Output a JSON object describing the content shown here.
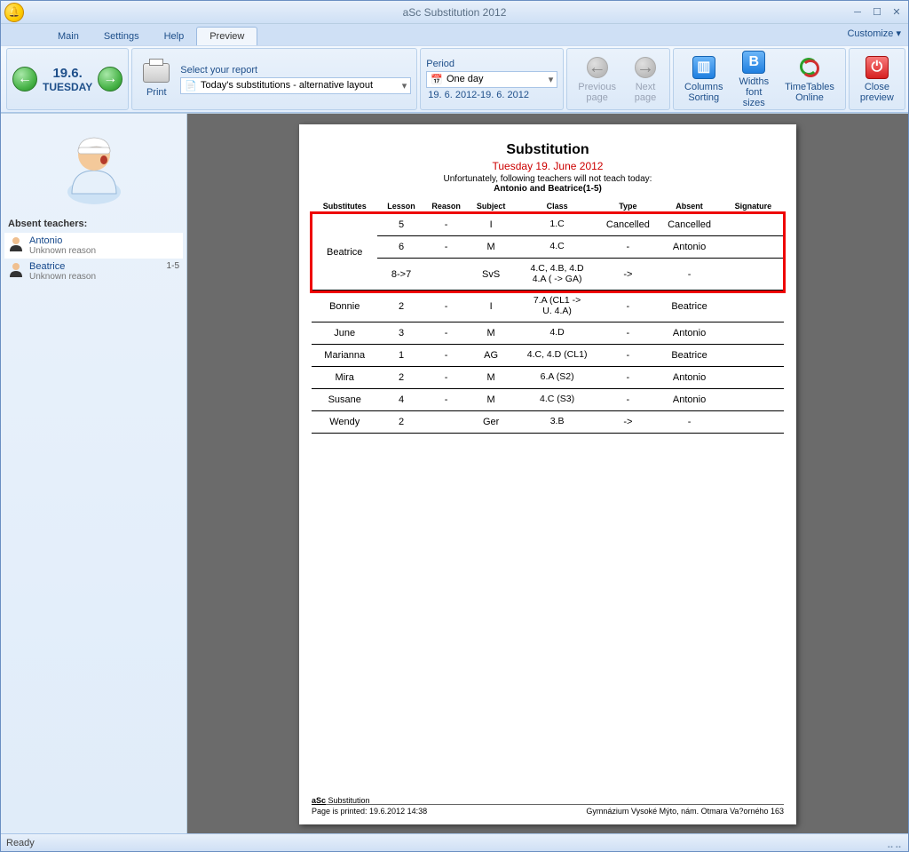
{
  "window": {
    "title": "aSc Substitution 2012"
  },
  "tabs": {
    "main": "Main",
    "settings": "Settings",
    "help": "Help",
    "preview": "Preview",
    "customize": "Customize"
  },
  "ribbon": {
    "date": {
      "day": "19.6.",
      "weekday": "TUESDAY"
    },
    "print_label": "Print",
    "report": {
      "label": "Select your report",
      "value": "Today's substitutions - alternative layout"
    },
    "period": {
      "label": "Period",
      "value": "One day",
      "range": "19. 6. 2012-19. 6. 2012"
    },
    "prev_page": "Previous page",
    "next_page": "Next page",
    "cols": "Columns Sorting",
    "widths": "Widths font sizes",
    "online": "TimeTables Online",
    "close": "Close preview"
  },
  "sidebar": {
    "heading": "Absent teachers:",
    "teachers": [
      {
        "name": "Antonio",
        "reason": "Unknown reason",
        "extra": ""
      },
      {
        "name": "Beatrice",
        "reason": "Unknown reason",
        "extra": "1-5"
      }
    ]
  },
  "report": {
    "title": "Substitution",
    "date": "Tuesday 19. June 2012",
    "msg": "Unfortunately, following teachers will not teach today:",
    "absentline": "Antonio and Beatrice(1-5)",
    "headers": {
      "sub": "Substitutes",
      "lesson": "Lesson",
      "reason": "Reason",
      "subject": "Subject",
      "class": "Class",
      "type": "Type",
      "absent": "Absent",
      "sig": "Signature"
    },
    "groups": [
      {
        "substitute": "Beatrice",
        "highlighted": true,
        "rows": [
          {
            "lesson": "5",
            "reason": "-",
            "subject": "I",
            "class": "1.C",
            "type": "Cancelled",
            "absent": "Cancelled"
          },
          {
            "lesson": "6",
            "reason": "-",
            "subject": "M",
            "class": "4.C",
            "type": "-",
            "absent": "Antonio"
          },
          {
            "lesson": "8->7",
            "reason": "",
            "subject": "SvS",
            "class": "4.C, 4.B, 4.D 4.A ( -> GA)",
            "type": "->",
            "absent": "-"
          }
        ]
      },
      {
        "substitute": "Bonnie",
        "rows": [
          {
            "lesson": "2",
            "reason": "-",
            "subject": "I",
            "class": "7.A (CL1 -> U. 4.A)",
            "type": "-",
            "absent": "Beatrice"
          }
        ]
      },
      {
        "substitute": "June",
        "rows": [
          {
            "lesson": "3",
            "reason": "-",
            "subject": "M",
            "class": "4.D",
            "type": "-",
            "absent": "Antonio"
          }
        ]
      },
      {
        "substitute": "Marianna",
        "rows": [
          {
            "lesson": "1",
            "reason": "-",
            "subject": "AG",
            "class": "4.C, 4.D (CL1)",
            "type": "-",
            "absent": "Beatrice"
          }
        ]
      },
      {
        "substitute": "Mira",
        "rows": [
          {
            "lesson": "2",
            "reason": "-",
            "subject": "M",
            "class": "6.A (S2)",
            "type": "-",
            "absent": "Antonio"
          }
        ]
      },
      {
        "substitute": "Susane",
        "rows": [
          {
            "lesson": "4",
            "reason": "-",
            "subject": "M",
            "class": "4.C (S3)",
            "type": "-",
            "absent": "Antonio"
          }
        ]
      },
      {
        "substitute": "Wendy",
        "rows": [
          {
            "lesson": "2",
            "reason": "",
            "subject": "Ger",
            "class": "3.B",
            "type": "->",
            "absent": "-"
          }
        ]
      }
    ],
    "brand": "aSc",
    "brand2": "Substitution",
    "printed": "Page is printed: 19.6.2012 14:38",
    "school": "Gymnázium Vysoké Mýto, nám. Otmara Va?orného 163"
  },
  "status": {
    "ready": "Ready"
  }
}
